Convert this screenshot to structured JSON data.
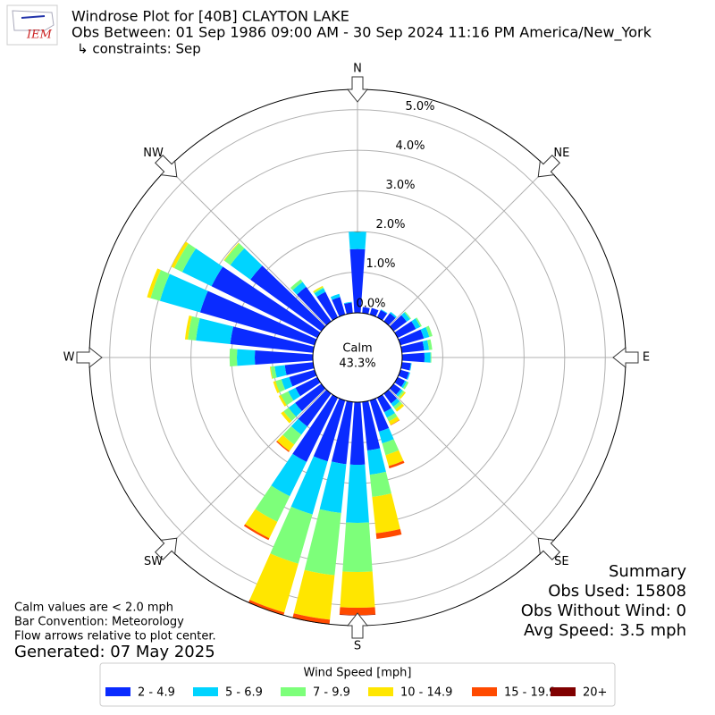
{
  "chart_data": {
    "type": "windrose",
    "logo": "IEM",
    "title": "Windrose Plot for [40B] CLAYTON LAKE",
    "subtitle": "Obs Between: 01 Sep 1986 09:00 AM - 30 Sep 2024 11:16 PM America/New_York",
    "constraints": "↳ constraints: Sep",
    "calm_label": "Calm",
    "calm_value": 43.3,
    "calm_value_label": "43.3%",
    "notes": [
      "Calm values are < 2.0 mph",
      "Bar Convention: Meteorology",
      "Flow arrows relative to plot center."
    ],
    "generated": "Generated: 07 May 2025",
    "summary": [
      "Summary",
      "Obs Used: 15808",
      "Obs Without Wind: 0",
      "Avg Speed: 3.5 mph"
    ],
    "legend_title": "Wind Speed [mph]",
    "ylim": [
      0,
      5.5
    ],
    "yticks": [
      {
        "value": 0,
        "label": "0.0%"
      },
      {
        "value": 1,
        "label": "1.0%"
      },
      {
        "value": 2,
        "label": "2.0%"
      },
      {
        "value": 3,
        "label": "3.0%"
      },
      {
        "value": 4,
        "label": "4.0%"
      },
      {
        "value": 5,
        "label": "5.0%"
      }
    ],
    "xticks": [
      {
        "value": 0,
        "label": "N"
      },
      {
        "value": 45,
        "label": "NE"
      },
      {
        "value": 90,
        "label": "E"
      },
      {
        "value": 135,
        "label": "SE"
      },
      {
        "value": 180,
        "label": "S"
      },
      {
        "value": 225,
        "label": "SW"
      },
      {
        "value": 270,
        "label": "W"
      },
      {
        "value": 315,
        "label": "NW"
      }
    ],
    "grid": true,
    "x": [
      0,
      10,
      20,
      30,
      40,
      50,
      60,
      70,
      80,
      90,
      100,
      110,
      120,
      130,
      140,
      150,
      160,
      170,
      180,
      190,
      200,
      210,
      220,
      230,
      240,
      250,
      260,
      270,
      280,
      290,
      300,
      310,
      320,
      330,
      340,
      350
    ],
    "series": [
      {
        "name": "2 - 4.9",
        "color": "#0a2bff",
        "values": [
          1.57,
          0.15,
          0.17,
          0.2,
          0.25,
          0.4,
          0.5,
          0.6,
          0.55,
          0.55,
          0.22,
          0.22,
          0.2,
          0.22,
          0.3,
          0.4,
          0.8,
          1.2,
          1.54,
          1.54,
          1.56,
          1.76,
          1.0,
          0.8,
          0.6,
          0.65,
          0.7,
          1.43,
          2.05,
          2.93,
          2.9,
          2.16,
          1.05,
          0.7,
          0.45,
          0.26
        ]
      },
      {
        "name": "5 - 6.9",
        "color": "#00d4ff",
        "values": [
          0.43,
          0,
          0,
          0.02,
          0.04,
          0.1,
          0.12,
          0.14,
          0.12,
          0.15,
          0.02,
          0.03,
          0.05,
          0.06,
          0.1,
          0.15,
          0.3,
          0.6,
          1.43,
          1.21,
          1.36,
          0.94,
          0.25,
          0.2,
          0.2,
          0.2,
          0.25,
          0.44,
          0.85,
          1.03,
          0.8,
          0.61,
          0.15,
          0.1,
          0.08,
          0.02
        ]
      },
      {
        "name": "7 - 9.9",
        "color": "#7dff7a",
        "values": [
          0,
          0,
          0,
          0,
          0,
          0.03,
          0.04,
          0.08,
          0.08,
          0.02,
          0,
          0,
          0.05,
          0.05,
          0.08,
          0.1,
          0.3,
          0.55,
          1.21,
          1.54,
          1.26,
          0.7,
          0.3,
          0.15,
          0.2,
          0.15,
          0.1,
          0.18,
          0.2,
          0.24,
          0.22,
          0.18,
          0.08,
          0.03,
          0,
          0
        ]
      },
      {
        "name": "10 - 14.9",
        "color": "#ffe600",
        "values": [
          0,
          0,
          0,
          0,
          0,
          0,
          0,
          0,
          0,
          0,
          0,
          0,
          0,
          0.04,
          0.07,
          0.1,
          0.28,
          0.9,
          0.88,
          1.1,
          1.25,
          0.45,
          0.2,
          0.08,
          0.06,
          0.06,
          0.02,
          0,
          0.07,
          0.09,
          0.08,
          0.02,
          0,
          0.03,
          0,
          0
        ]
      },
      {
        "name": "15 - 19.9",
        "color": "#ff4a00",
        "values": [
          0,
          0,
          0,
          0,
          0,
          0,
          0,
          0,
          0,
          0,
          0,
          0,
          0,
          0,
          0,
          0.01,
          0.06,
          0.14,
          0.18,
          0.11,
          0.07,
          0.05,
          0.03,
          0,
          0,
          0,
          0,
          0,
          0,
          0,
          0,
          0,
          0,
          0,
          0,
          0
        ]
      },
      {
        "name": "20+",
        "color": "#800000",
        "values": [
          0,
          0,
          0,
          0,
          0,
          0,
          0,
          0,
          0,
          0,
          0,
          0,
          0,
          0,
          0,
          0,
          0,
          0,
          0.01,
          0.01,
          0,
          0,
          0,
          0,
          0,
          0,
          0,
          0,
          0,
          0,
          0,
          0,
          0,
          0,
          0,
          0
        ]
      }
    ]
  }
}
